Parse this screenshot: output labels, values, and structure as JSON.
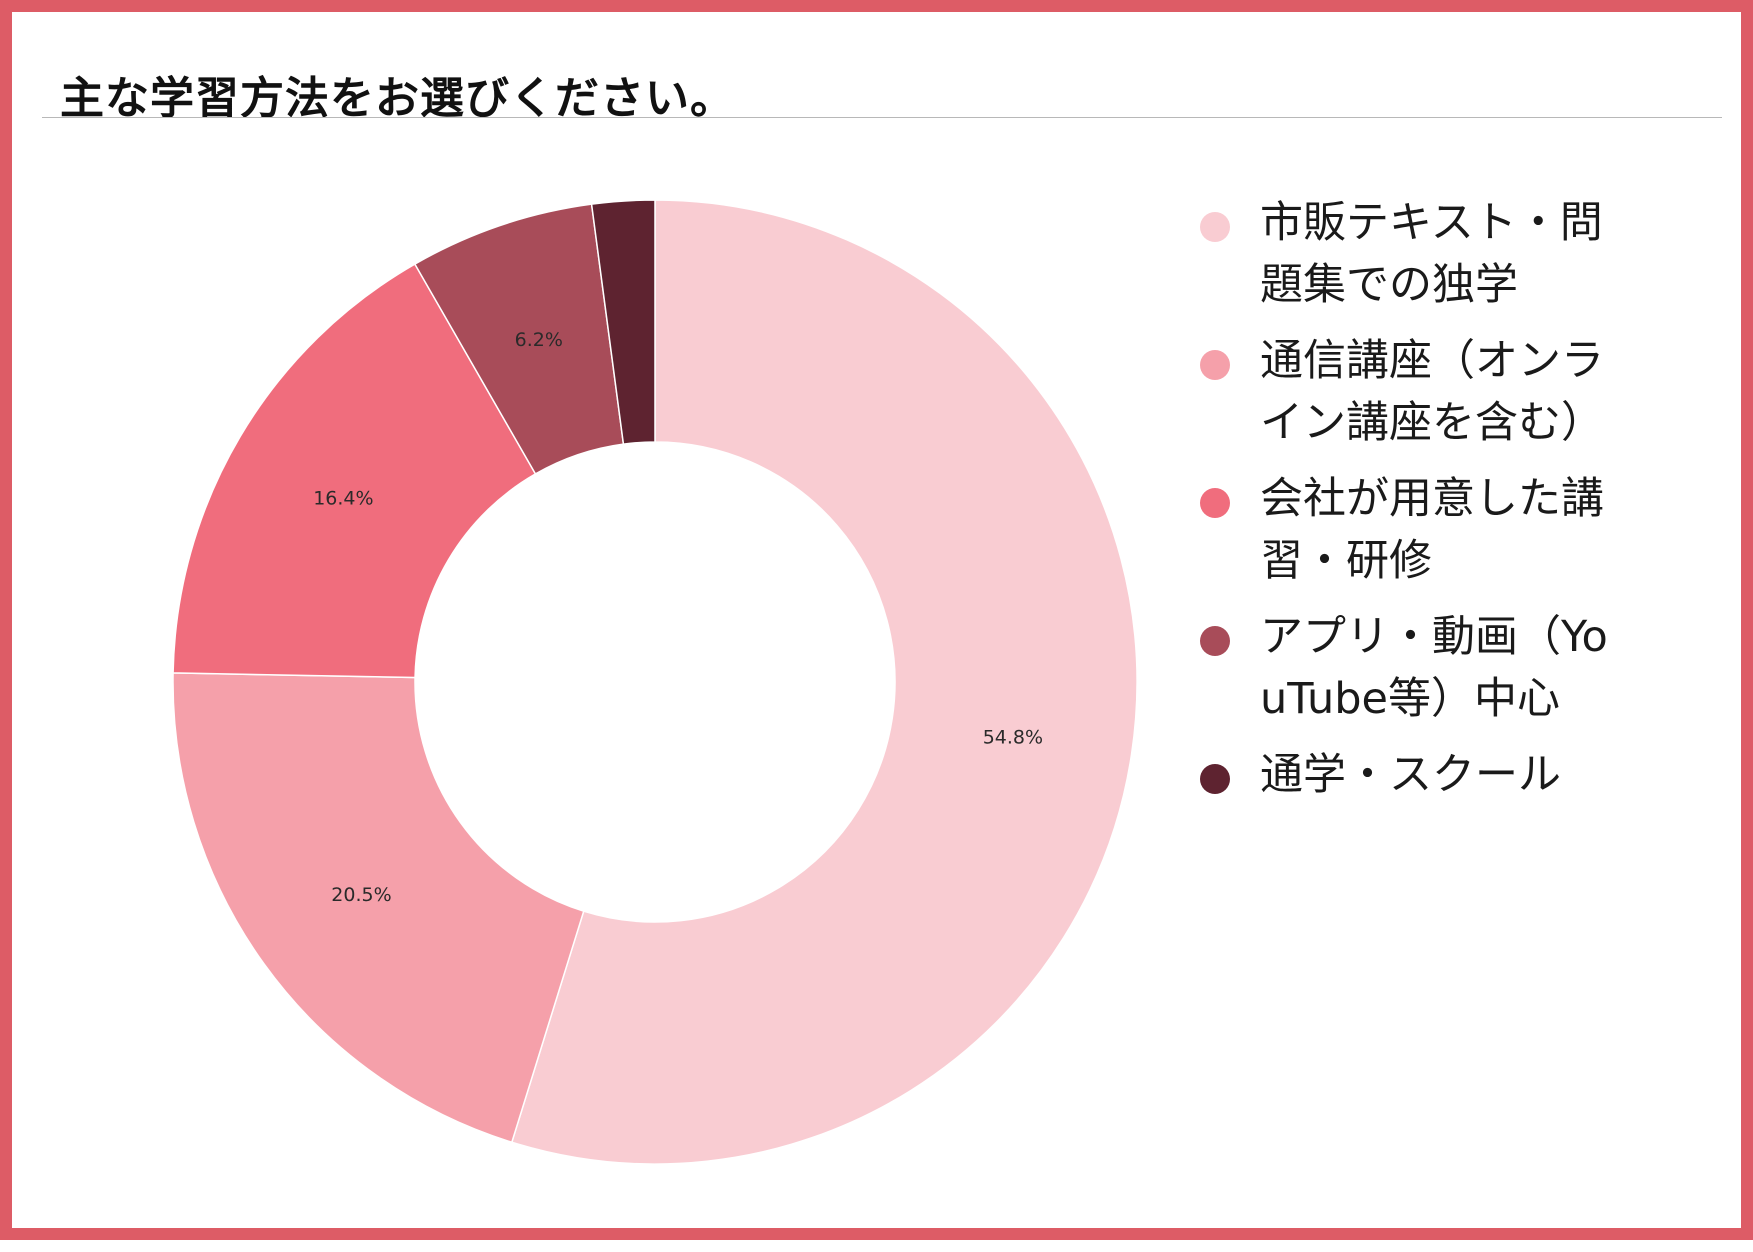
{
  "title": "主な学習方法をお選びください。",
  "chart_data": {
    "type": "pie",
    "donut": true,
    "start_angle_deg": 0,
    "direction": "clockwise",
    "legend_position": "right",
    "categories": [
      "市販テキスト・問題集での独学",
      "通信講座（オンライン講座を含む）",
      "会社が用意した講習・研修",
      "アプリ・動画（YouTube等）中心",
      "通学・スクール"
    ],
    "values": [
      54.8,
      20.5,
      16.4,
      6.2,
      2.1
    ],
    "labels": [
      "54.8%",
      "20.5%",
      "16.4%",
      "6.2%",
      ""
    ],
    "colors": [
      "#f9ccd2",
      "#f5a0aa",
      "#f06d7d",
      "#a84c59",
      "#5e2330"
    ]
  }
}
